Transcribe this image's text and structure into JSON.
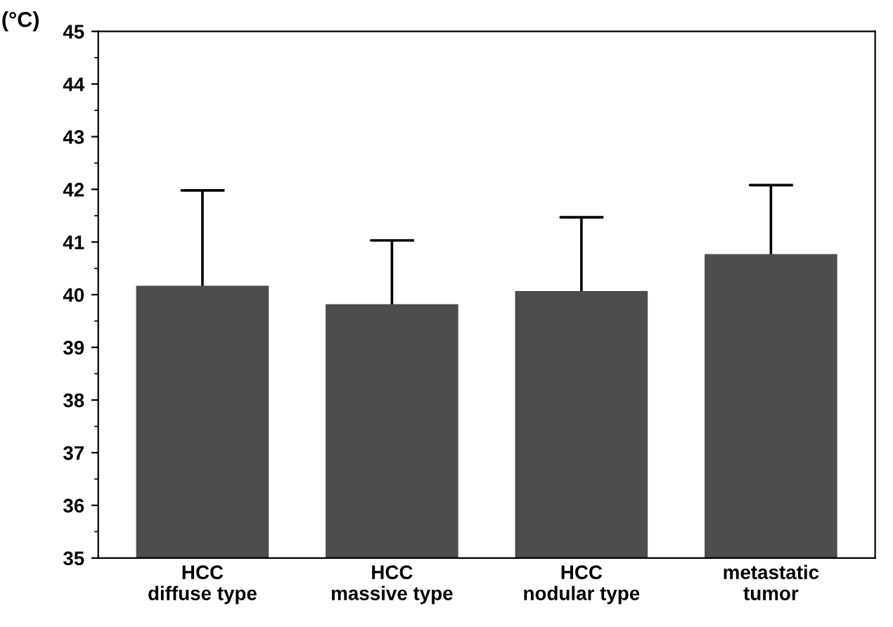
{
  "chart_data": {
    "type": "bar",
    "ylabel": "(°C)",
    "categories": [
      "HCC\ndiffuse type",
      "HCC\nmassive type",
      "HCC\nnodular type",
      "metastatic\ntumor"
    ],
    "values": [
      40.17,
      39.82,
      40.07,
      40.77
    ],
    "errors": [
      1.81,
      1.21,
      1.4,
      1.31
    ],
    "color": "#4d4d4d",
    "ylim": [
      35,
      45
    ],
    "yticks": [
      35,
      36,
      37,
      38,
      39,
      40,
      41,
      42,
      43,
      44,
      45
    ],
    "grid": false
  }
}
